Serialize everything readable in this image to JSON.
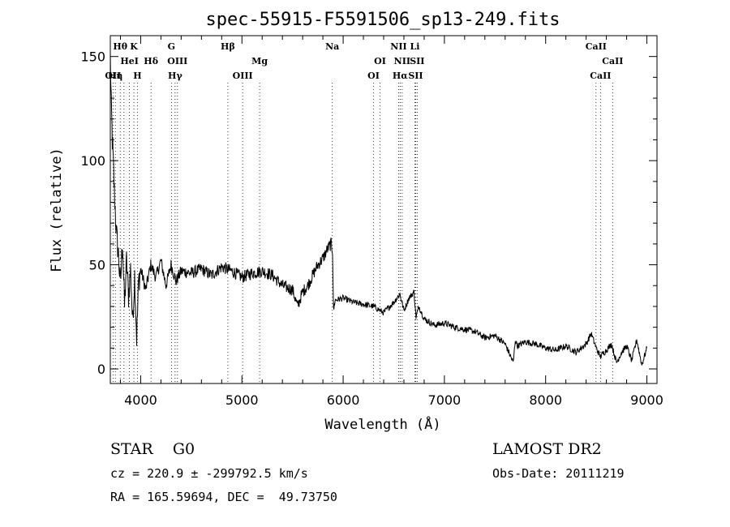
{
  "chart_data": {
    "type": "line",
    "title": "spec-55915-F5591506_sp13-249.fits",
    "xlabel": "Wavelength (Å)",
    "ylabel": "Flux (relative)",
    "xlim": [
      3700,
      9100
    ],
    "ylim": [
      -7,
      160
    ],
    "x_ticks": [
      4000,
      5000,
      6000,
      7000,
      8000,
      9000
    ],
    "y_ticks": [
      0,
      50,
      100,
      150
    ],
    "grid": false,
    "series": [
      {
        "x": [
          3700,
          3710,
          3720,
          3730,
          3740,
          3760,
          3780,
          3800,
          3820,
          3840,
          3860,
          3880,
          3900,
          3920,
          3940,
          3960,
          3980,
          4000,
          4050,
          4100,
          4150,
          4200,
          4250,
          4300,
          4350,
          4400,
          4500,
          4600,
          4700,
          4800,
          4900,
          5000,
          5100,
          5200,
          5300,
          5400,
          5500,
          5550,
          5600,
          5650,
          5700,
          5750,
          5800,
          5850,
          5880,
          5895,
          5905,
          5920,
          6000,
          6100,
          6200,
          6300,
          6400,
          6500,
          6560,
          6600,
          6650,
          6700,
          6720,
          6750,
          6800,
          6900,
          7000,
          7100,
          7200,
          7300,
          7400,
          7500,
          7600,
          7680,
          7700,
          7720,
          7800,
          7900,
          8000,
          8100,
          8200,
          8300,
          8400,
          8450,
          8500,
          8540,
          8600,
          8650,
          8700,
          8750,
          8800,
          8850,
          8900,
          8950,
          9000
        ],
        "y": [
          150,
          125,
          110,
          98,
          85,
          65,
          55,
          40,
          62,
          30,
          52,
          35,
          48,
          22,
          45,
          15,
          42,
          48,
          38,
          50,
          44,
          52,
          40,
          50,
          42,
          47,
          46,
          48,
          45,
          49,
          47,
          44,
          46,
          47,
          45,
          40,
          38,
          30,
          37,
          40,
          45,
          50,
          53,
          58,
          60,
          57,
          28,
          33,
          34,
          32,
          31,
          30,
          27,
          32,
          36,
          28,
          34,
          37,
          25,
          30,
          24,
          21,
          22,
          20,
          19,
          18,
          15,
          16,
          12,
          3,
          14,
          11,
          13,
          12,
          10,
          9,
          11,
          8,
          12,
          17,
          10,
          6,
          9,
          12,
          3,
          8,
          11,
          4,
          14,
          2,
          10
        ]
      }
    ],
    "line_marks": [
      {
        "wl": 3727,
        "label": "OII",
        "row": 3
      },
      {
        "wl": 3750,
        "label": "Hη",
        "row": 3
      },
      {
        "wl": 3798,
        "label": "Hθ",
        "row": 1
      },
      {
        "wl": 3835,
        "label": "",
        "row": 0
      },
      {
        "wl": 3889,
        "label": "HeI",
        "row": 2
      },
      {
        "wl": 3933,
        "label": "K",
        "row": 1
      },
      {
        "wl": 3968,
        "label": "H",
        "row": 3
      },
      {
        "wl": 4102,
        "label": "Hδ",
        "row": 2
      },
      {
        "wl": 4304,
        "label": "G",
        "row": 1
      },
      {
        "wl": 4340,
        "label": "Hγ",
        "row": 3
      },
      {
        "wl": 4363,
        "label": "OIII",
        "row": 2
      },
      {
        "wl": 4861,
        "label": "Hβ",
        "row": 1
      },
      {
        "wl": 5007,
        "label": "OIII",
        "row": 3
      },
      {
        "wl": 5175,
        "label": "Mg",
        "row": 2
      },
      {
        "wl": 5893,
        "label": "Na",
        "row": 1
      },
      {
        "wl": 6300,
        "label": "OI",
        "row": 3
      },
      {
        "wl": 6364,
        "label": "OI",
        "row": 2
      },
      {
        "wl": 6548,
        "label": "NII",
        "row": 1
      },
      {
        "wl": 6563,
        "label": "Hα",
        "row": 3
      },
      {
        "wl": 6583,
        "label": "NII",
        "row": 2
      },
      {
        "wl": 6708,
        "label": "Li",
        "row": 1
      },
      {
        "wl": 6716,
        "label": "SII",
        "row": 3
      },
      {
        "wl": 6731,
        "label": "SII",
        "row": 2
      },
      {
        "wl": 8498,
        "label": "CaII",
        "row": 1
      },
      {
        "wl": 8542,
        "label": "CaII",
        "row": 3
      },
      {
        "wl": 8662,
        "label": "CaII",
        "row": 2
      }
    ]
  },
  "info": {
    "class_line": "STAR    G0",
    "survey": "LAMOST DR2",
    "cz": "cz = 220.9 ± -299792.5 km/s",
    "obs_date": "Obs-Date: 20111219",
    "coords": "RA = 165.59694, DEC =  49.73750"
  }
}
